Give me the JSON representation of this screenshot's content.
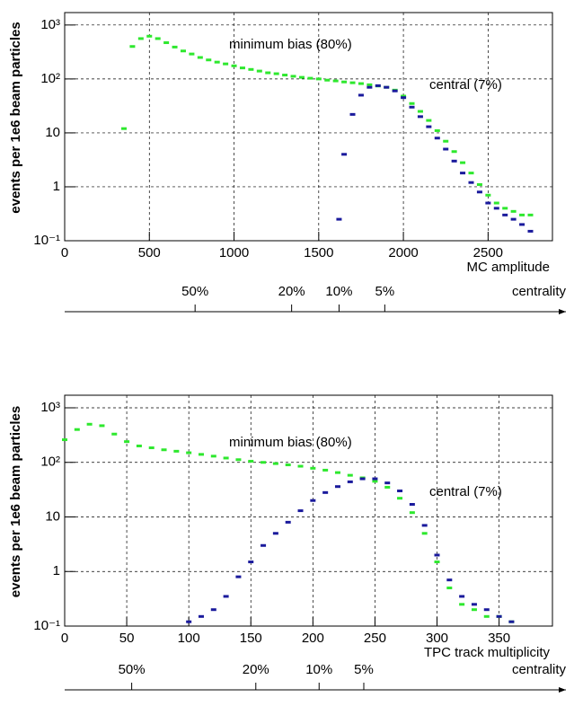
{
  "chart_data": [
    {
      "type": "scatter",
      "x_label": "MC amplitude",
      "y_label": "events per 1e6 beam particles",
      "xlim": [
        0,
        2880
      ],
      "ylim": [
        0.1,
        1700
      ],
      "log_y": true,
      "grid": true,
      "xticks": [
        0,
        500,
        1000,
        1500,
        2000,
        2500
      ],
      "yticks": [
        {
          "value": 0.1,
          "label": "10⁻¹"
        },
        1,
        10,
        {
          "value": 100,
          "label": "10²"
        },
        {
          "value": 1000,
          "label": "10³"
        }
      ],
      "series": [
        {
          "name": "minimum bias (80%)",
          "color": "#2ee82e",
          "x": [
            350,
            400,
            450,
            500,
            550,
            600,
            650,
            700,
            750,
            800,
            850,
            900,
            950,
            1000,
            1050,
            1100,
            1150,
            1200,
            1250,
            1300,
            1350,
            1400,
            1450,
            1500,
            1550,
            1600,
            1650,
            1700,
            1750,
            1800,
            1850,
            1900,
            1950,
            2000,
            2050,
            2100,
            2150,
            2200,
            2250,
            2300,
            2350,
            2400,
            2450,
            2500,
            2550,
            2600,
            2650,
            2700,
            2750
          ],
          "values": [
            12,
            400,
            560,
            620,
            560,
            470,
            390,
            330,
            290,
            250,
            225,
            205,
            190,
            175,
            160,
            150,
            140,
            130,
            125,
            118,
            112,
            107,
            103,
            100,
            95,
            92,
            88,
            85,
            82,
            78,
            74,
            70,
            62,
            48,
            35,
            25,
            17,
            11,
            7,
            4.5,
            2.8,
            1.8,
            1.1,
            0.7,
            0.5,
            0.4,
            0.35,
            0.3,
            0.3
          ]
        },
        {
          "name": "central (7%)",
          "color": "#1a1a9c",
          "x": [
            1620,
            1650,
            1700,
            1750,
            1800,
            1850,
            1900,
            1950,
            2000,
            2050,
            2100,
            2150,
            2200,
            2250,
            2300,
            2350,
            2400,
            2450,
            2500,
            2550,
            2600,
            2650,
            2700,
            2750
          ],
          "values": [
            0.25,
            4,
            22,
            50,
            70,
            75,
            70,
            60,
            45,
            30,
            20,
            13,
            8,
            5,
            3,
            1.8,
            1.2,
            0.8,
            0.5,
            0.4,
            0.3,
            0.25,
            0.2,
            0.15
          ]
        }
      ],
      "centrality": {
        "label": "centrality",
        "ticks": [
          {
            "value": 770,
            "label": "50%"
          },
          {
            "value": 1340,
            "label": "20%"
          },
          {
            "value": 1620,
            "label": "10%"
          },
          {
            "value": 1890,
            "label": "5%"
          }
        ]
      }
    },
    {
      "type": "scatter",
      "x_label": "TPC track multiplicity",
      "y_label": "events per 1e6 beam particles",
      "xlim": [
        0,
        393
      ],
      "ylim": [
        0.1,
        1700
      ],
      "log_y": true,
      "grid": true,
      "xticks": [
        0,
        50,
        100,
        150,
        200,
        250,
        300,
        350
      ],
      "yticks": [
        {
          "value": 0.1,
          "label": "10⁻¹"
        },
        1,
        10,
        {
          "value": 100,
          "label": "10²"
        },
        {
          "value": 1000,
          "label": "10³"
        }
      ],
      "series": [
        {
          "name": "minimum bias (80%)",
          "color": "#2ee82e",
          "x": [
            0,
            10,
            20,
            30,
            40,
            50,
            60,
            70,
            80,
            90,
            100,
            110,
            120,
            130,
            140,
            150,
            160,
            170,
            180,
            190,
            200,
            210,
            220,
            230,
            240,
            250,
            260,
            270,
            280,
            290,
            300,
            310,
            320,
            330,
            340,
            350,
            360
          ],
          "values": [
            260,
            400,
            500,
            470,
            330,
            240,
            200,
            185,
            170,
            160,
            150,
            140,
            130,
            120,
            112,
            105,
            100,
            95,
            90,
            85,
            78,
            72,
            65,
            58,
            52,
            45,
            35,
            22,
            12,
            5,
            1.5,
            0.5,
            0.25,
            0.2,
            0.15,
            0.15,
            0.12
          ]
        },
        {
          "name": "central (7%)",
          "color": "#1a1a9c",
          "x": [
            100,
            110,
            120,
            130,
            140,
            150,
            160,
            170,
            180,
            190,
            200,
            210,
            220,
            230,
            240,
            250,
            260,
            270,
            280,
            290,
            300,
            310,
            320,
            330,
            340,
            350,
            360
          ],
          "values": [
            0.12,
            0.15,
            0.2,
            0.35,
            0.8,
            1.5,
            3,
            5,
            8,
            13,
            20,
            28,
            36,
            44,
            50,
            50,
            42,
            30,
            17,
            7,
            2,
            0.7,
            0.35,
            0.25,
            0.2,
            0.15,
            0.12
          ]
        }
      ],
      "centrality": {
        "label": "centrality",
        "ticks": [
          {
            "value": 54,
            "label": "50%"
          },
          {
            "value": 154,
            "label": "20%"
          },
          {
            "value": 205,
            "label": "10%"
          },
          {
            "value": 241,
            "label": "5%"
          }
        ]
      }
    }
  ]
}
